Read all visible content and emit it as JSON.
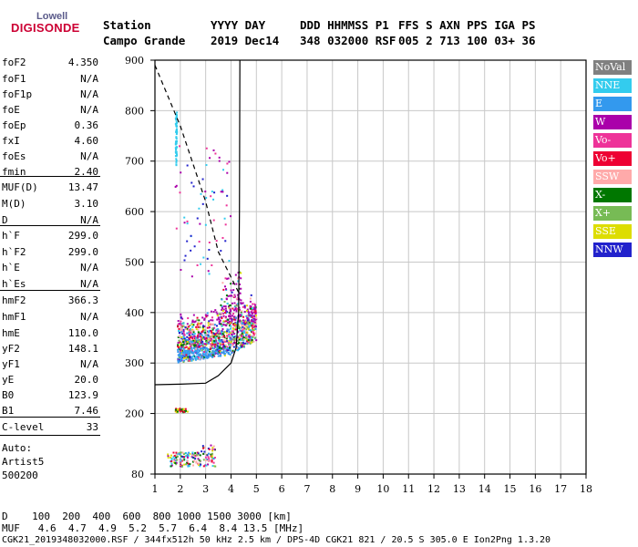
{
  "logo": {
    "top": "Lowell",
    "main": "DIGISONDE"
  },
  "header": {
    "row1": [
      "Station",
      "YYYY DAY",
      "DDD HHMMSS P1",
      "FFS S AXN PPS IGA PS"
    ],
    "row2": [
      "Campo Grande",
      "2019 Dec14",
      "348 032000 RSF",
      "005 2 713 100 03+ 36"
    ]
  },
  "params": [
    {
      "k": "foF2",
      "v": "4.350"
    },
    {
      "k": "foF1",
      "v": "N/A"
    },
    {
      "k": "foF1p",
      "v": "N/A"
    },
    {
      "k": "foE",
      "v": "N/A"
    },
    {
      "k": "foEp",
      "v": "0.36"
    },
    {
      "k": "fxI",
      "v": "4.60"
    },
    {
      "k": "foEs",
      "v": "N/A"
    },
    {
      "k": "fmin",
      "v": "2.40"
    },
    {
      "k": "MUF(D)",
      "v": "13.47"
    },
    {
      "k": "M(D)",
      "v": "3.10"
    },
    {
      "k": "D",
      "v": "N/A"
    },
    {
      "k": "h`F",
      "v": "299.0"
    },
    {
      "k": "h`F2",
      "v": "299.0"
    },
    {
      "k": "h`E",
      "v": "N/A"
    },
    {
      "k": "h`Es",
      "v": "N/A"
    },
    {
      "k": "hmF2",
      "v": "366.3"
    },
    {
      "k": "hmF1",
      "v": "N/A"
    },
    {
      "k": "hmE",
      "v": "110.0"
    },
    {
      "k": "yF2",
      "v": "148.1"
    },
    {
      "k": "yF1",
      "v": "N/A"
    },
    {
      "k": "yE",
      "v": "20.0"
    },
    {
      "k": "B0",
      "v": "123.9"
    },
    {
      "k": "B1",
      "v": "7.46"
    },
    {
      "k": "C-level",
      "v": "33"
    }
  ],
  "auto": {
    "line1": "Auto:",
    "line2": "Artist5",
    "line3": "500200"
  },
  "legend": [
    {
      "label": "NoVal",
      "color": "#808080"
    },
    {
      "label": "NNE",
      "color": "#33ccee"
    },
    {
      "label": "E",
      "color": "#3399ee"
    },
    {
      "label": "W",
      "color": "#aa00aa"
    },
    {
      "label": "Vo-",
      "color": "#ee3399"
    },
    {
      "label": "Vo+",
      "color": "#ee0033"
    },
    {
      "label": "SSW",
      "color": "#ffaaaa"
    },
    {
      "label": "X-",
      "color": "#007700"
    },
    {
      "label": "X+",
      "color": "#77bb55"
    },
    {
      "label": "SSE",
      "color": "#dddd00"
    },
    {
      "label": "NNW",
      "color": "#2222cc"
    }
  ],
  "axes": {
    "x_ticks": [
      "1",
      "2",
      "3",
      "4",
      "5",
      "6",
      "7",
      "8",
      "9",
      "10",
      "11",
      "12",
      "13",
      "14",
      "15",
      "16",
      "17",
      "18"
    ],
    "y_ticks": [
      "80",
      "200",
      "300",
      "400",
      "500",
      "600",
      "700",
      "800",
      "900"
    ]
  },
  "chart_data": {
    "type": "scatter",
    "title": "",
    "xlabel": "",
    "ylabel": "",
    "xlim": [
      1,
      18
    ],
    "ylim": [
      80,
      900
    ],
    "grid": true,
    "legend_placement": "right",
    "profile_solid": [
      [
        1,
        257
      ],
      [
        2,
        258
      ],
      [
        3,
        260
      ],
      [
        3.5,
        275
      ],
      [
        4,
        300
      ],
      [
        4.2,
        330
      ],
      [
        4.3,
        400
      ],
      [
        4.33,
        600
      ],
      [
        4.35,
        900
      ]
    ],
    "profile_dashed": [
      [
        1,
        890
      ],
      [
        2,
        770
      ],
      [
        3,
        620
      ],
      [
        3.5,
        520
      ],
      [
        4.0,
        470
      ],
      [
        4.3,
        440
      ]
    ],
    "clusters": [
      {
        "name": "NNE",
        "x": [
          1.8,
          1.85
        ],
        "y": [
          690,
          800
        ]
      },
      {
        "name": "main trace",
        "x": [
          1.9,
          5.0
        ],
        "y": [
          290,
          460
        ]
      },
      {
        "name": "E layer",
        "x": [
          1.8,
          2.3
        ],
        "y": [
          200,
          210
        ]
      },
      {
        "name": "low",
        "x": [
          1.5,
          3.3
        ],
        "y": [
          95,
          130
        ]
      }
    ]
  },
  "footer": {
    "row1": "D    100  200  400  600  800 1000 1500 3000 [km]",
    "row2": "MUF   4.6  4.7  4.9  5.2  5.7  6.4  8.4 13.5 [MHz]",
    "row3": "CGK21_2019348032000.RSF / 344fx512h 50 kHz 2.5 km / DPS-4D CGK21 821 / 20.5 S 305.0 E Ion2Png 1.3.20"
  }
}
